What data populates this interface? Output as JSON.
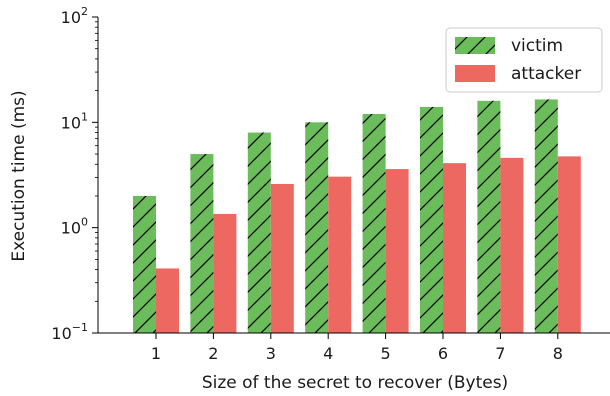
{
  "chart_data": {
    "type": "bar",
    "categories": [
      "1",
      "2",
      "3",
      "4",
      "5",
      "6",
      "7",
      "8"
    ],
    "series": [
      {
        "name": "victim",
        "values": [
          2.0,
          5.0,
          8.0,
          10.0,
          12.0,
          14.0,
          16.0,
          16.5
        ],
        "color": "#6bbd5b",
        "hatch": "diagonal"
      },
      {
        "name": "attacker",
        "values": [
          0.41,
          1.35,
          2.6,
          3.05,
          3.6,
          4.1,
          4.6,
          4.75
        ],
        "color": "#ee6862",
        "hatch": "none"
      }
    ],
    "xlabel": "Size of the secret to recover (Bytes)",
    "ylabel": "Execution time (ms)",
    "yscale": "log",
    "ylim": [
      0.1,
      100
    ],
    "yticks": [
      {
        "base": "10",
        "exp": "−1",
        "value": 0.1
      },
      {
        "base": "10",
        "exp": "0",
        "value": 1
      },
      {
        "base": "10",
        "exp": "1",
        "value": 10
      },
      {
        "base": "10",
        "exp": "2",
        "value": 100
      }
    ],
    "legend": {
      "placement": "top-right"
    },
    "grid": false
  }
}
